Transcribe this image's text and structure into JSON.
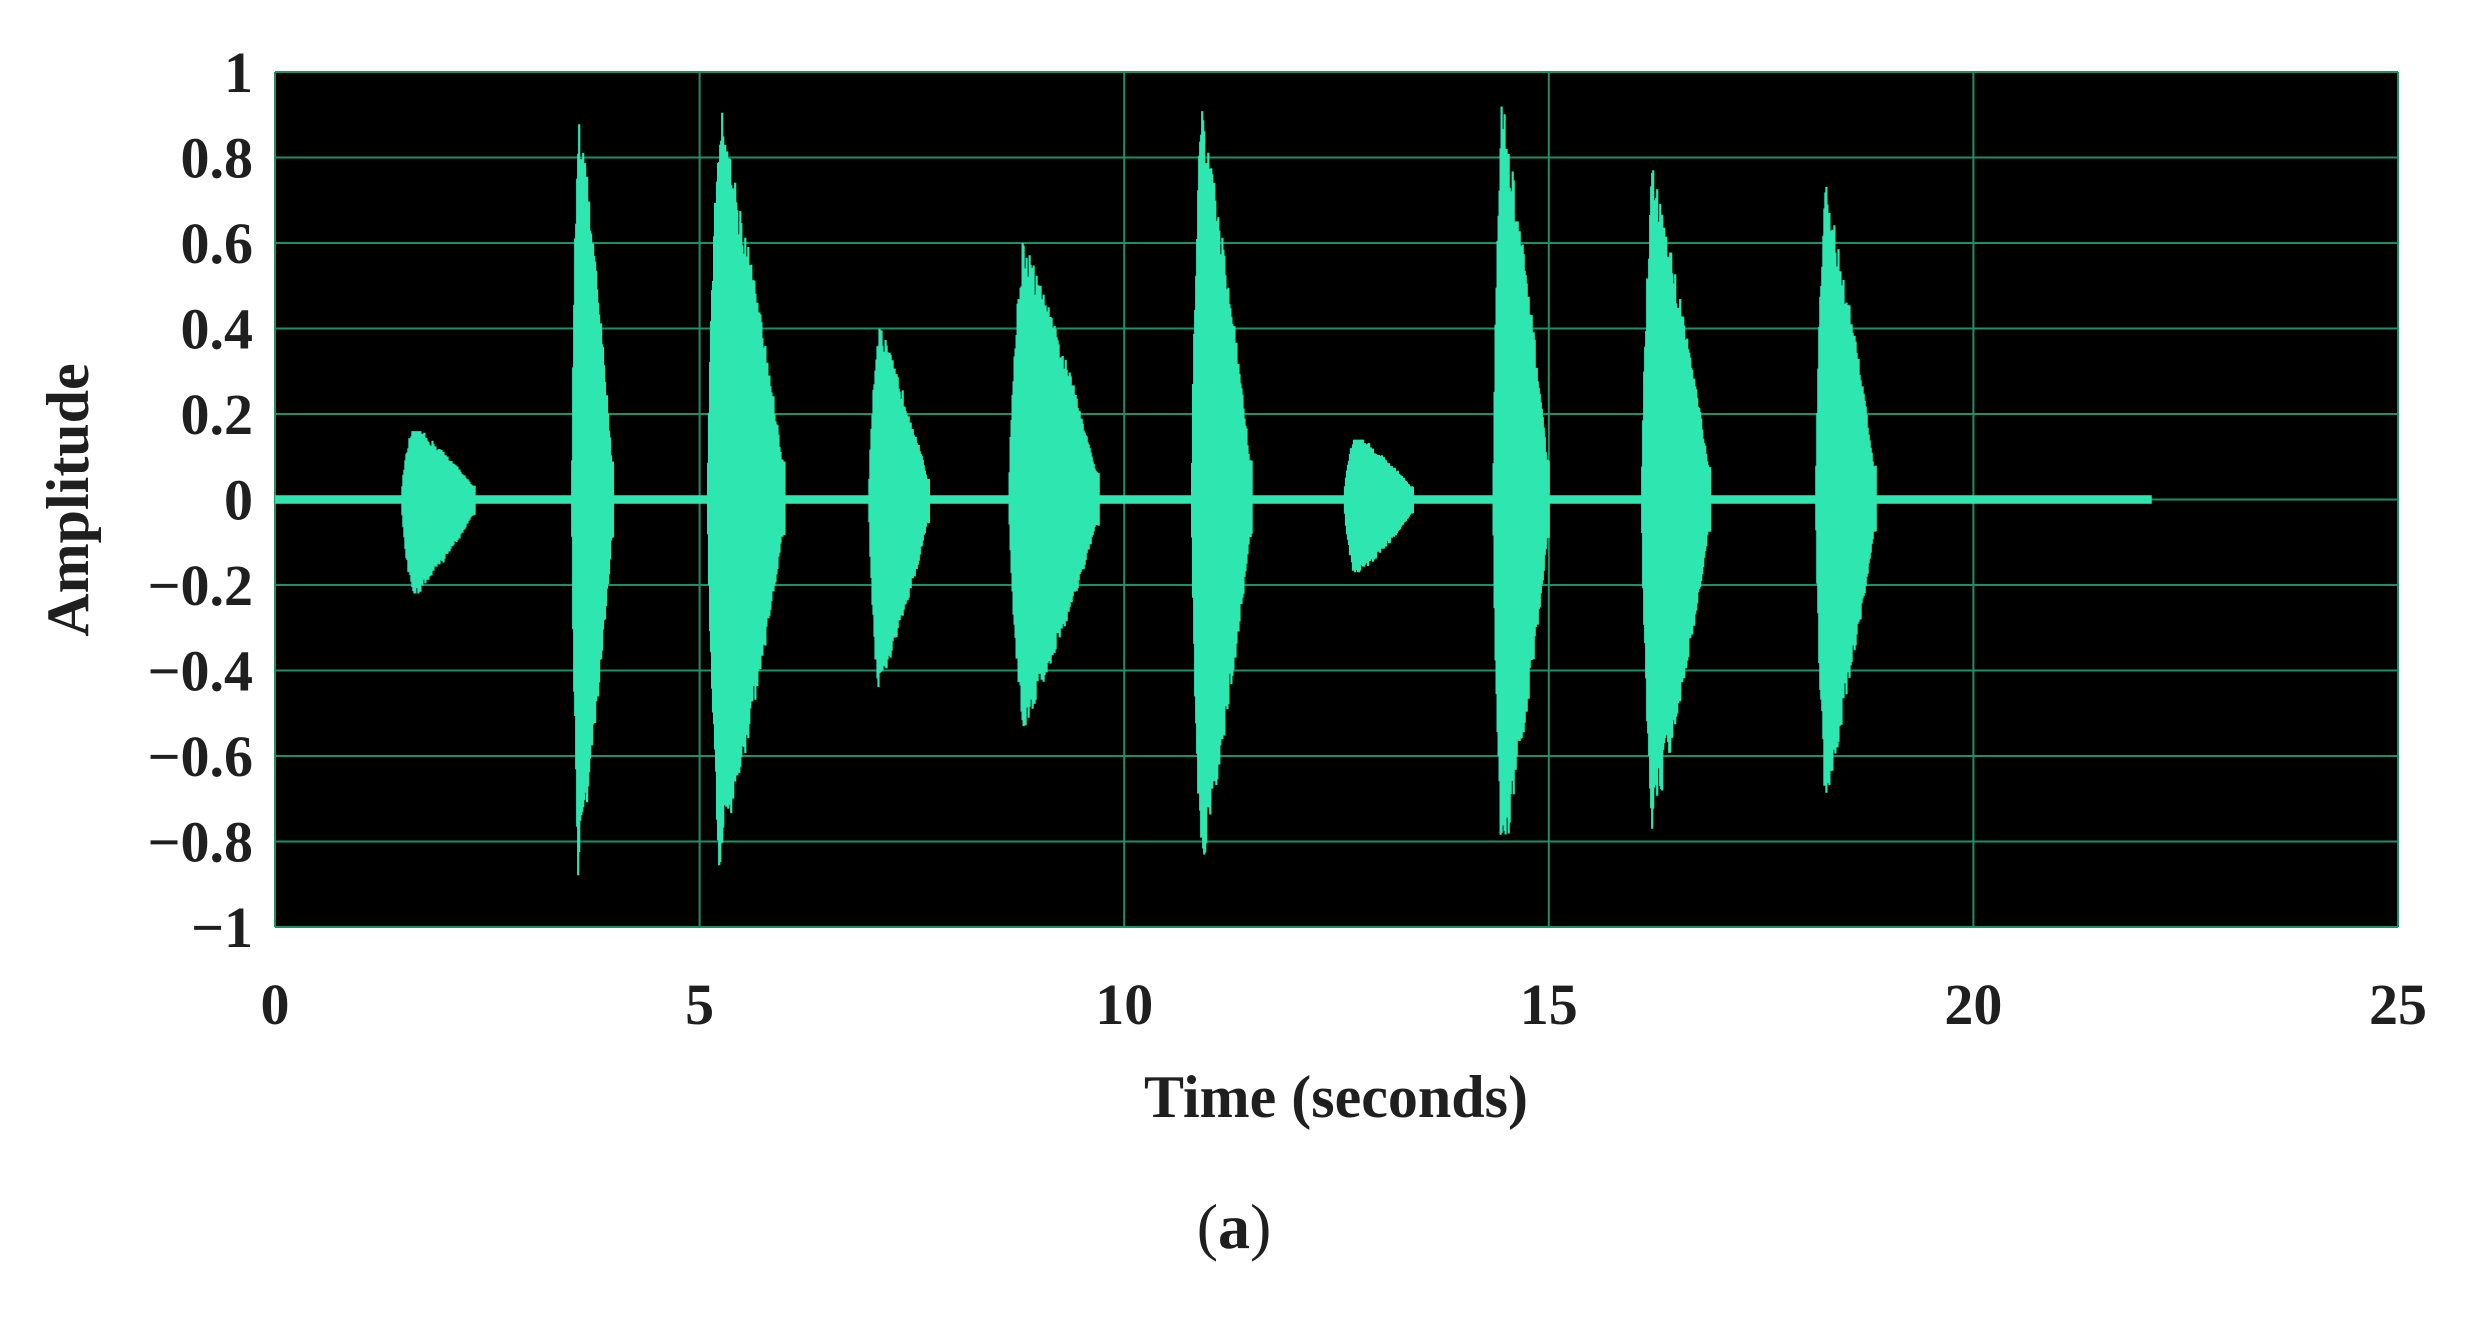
{
  "chart_data": {
    "type": "line",
    "title": "",
    "xlabel": "Time (seconds)",
    "ylabel": "Amplitude",
    "xlim": [
      0,
      25
    ],
    "ylim": [
      -1,
      1
    ],
    "x_ticks": [
      "0",
      "5",
      "10",
      "15",
      "20",
      "25"
    ],
    "y_ticks": [
      "1",
      "0.8",
      "0.6",
      "0.4",
      "0.2",
      "0",
      "-0.2",
      "-0.4",
      "-0.6",
      "-0.8",
      "-1"
    ],
    "grid": true,
    "background_color": "#000000",
    "grid_color": "#1f8f6a",
    "series_color": "#2ee6b0",
    "signal_end": 22.1,
    "noise_floor": 0.01,
    "series": [
      {
        "bursts": [
          {
            "start": 1.5,
            "end": 2.35,
            "peak_pos": 0.16,
            "peak_neg": -0.22
          },
          {
            "start": 3.5,
            "end": 3.98,
            "peak_pos": 0.93,
            "peak_neg": -0.88
          },
          {
            "start": 5.1,
            "end": 6.0,
            "peak_pos": 0.92,
            "peak_neg": -0.86
          },
          {
            "start": 7.0,
            "end": 7.7,
            "peak_pos": 0.4,
            "peak_neg": -0.45
          },
          {
            "start": 8.65,
            "end": 9.7,
            "peak_pos": 0.6,
            "peak_neg": -0.53
          },
          {
            "start": 10.8,
            "end": 11.5,
            "peak_pos": 0.93,
            "peak_neg": -0.88
          },
          {
            "start": 12.6,
            "end": 13.4,
            "peak_pos": 0.14,
            "peak_neg": -0.17
          },
          {
            "start": 14.35,
            "end": 15.0,
            "peak_pos": 0.93,
            "peak_neg": -0.88
          },
          {
            "start": 16.1,
            "end": 16.9,
            "peak_pos": 0.77,
            "peak_neg": -0.77
          },
          {
            "start": 18.15,
            "end": 18.85,
            "peak_pos": 0.74,
            "peak_neg": -0.7
          }
        ]
      }
    ]
  },
  "caption": {
    "open": "(",
    "letter": "a",
    "close": ")"
  }
}
